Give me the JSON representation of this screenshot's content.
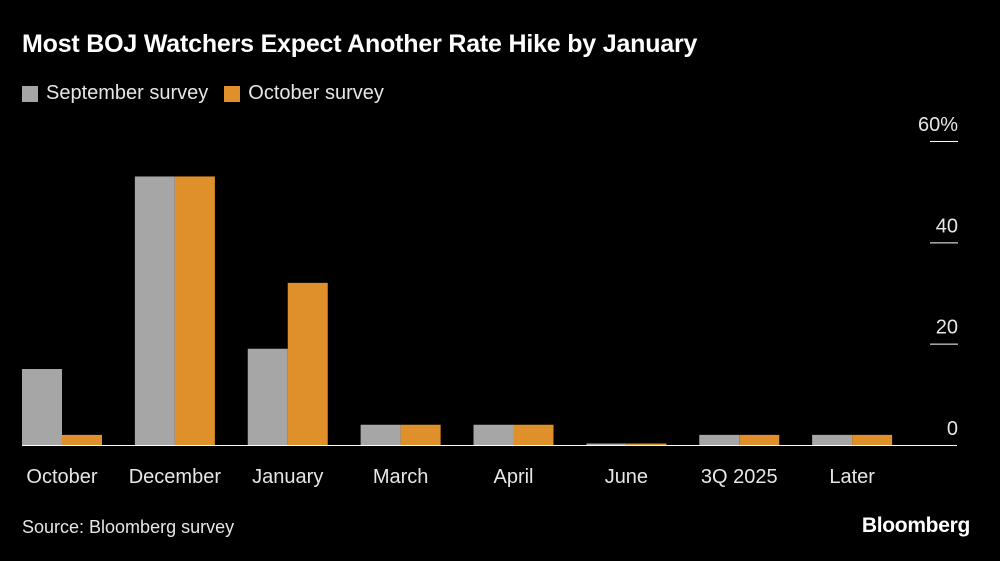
{
  "title": "Most BOJ Watchers Expect Another Rate Hike by January",
  "source": "Source: Bloomberg survey",
  "brand": "Bloomberg",
  "colors": {
    "september": "#a6a6a6",
    "october": "#e0902a",
    "grid": "#ffffff",
    "text": "#e6e6e6",
    "background": "#000000"
  },
  "chart_data": {
    "type": "bar",
    "title": "Most BOJ Watchers Expect Another Rate Hike by January",
    "xlabel": "",
    "ylabel": "",
    "categories": [
      "October",
      "December",
      "January",
      "March",
      "April",
      "June",
      "3Q 2025",
      "Later"
    ],
    "series": [
      {
        "name": "September survey",
        "values": [
          15,
          53,
          19,
          4,
          4,
          0.3,
          2,
          2
        ]
      },
      {
        "name": "October survey",
        "values": [
          2,
          53,
          32,
          4,
          4,
          0.3,
          2,
          2
        ]
      }
    ],
    "ylim": [
      0,
      60
    ],
    "yticks": [
      0,
      20,
      40,
      60
    ],
    "ytick_labels": [
      "0",
      "20",
      "40",
      "60%"
    ],
    "legend": "top-left",
    "grid": false
  }
}
